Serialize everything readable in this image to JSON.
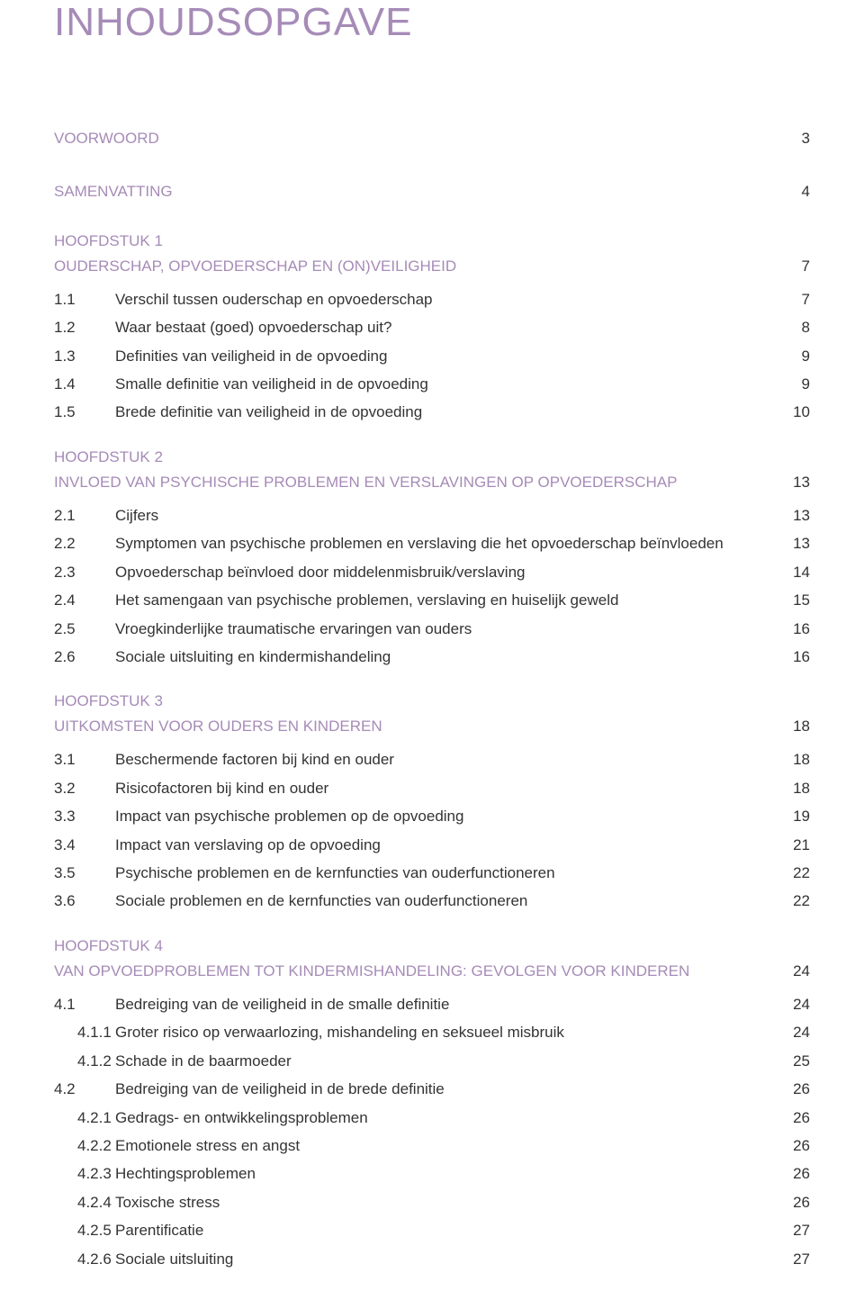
{
  "title": "INHOUDSOPGAVE",
  "accent_color": "#a68bb7",
  "text_color": "#333333",
  "bg_color": "#ffffff",
  "intro": [
    {
      "label": "VOORWOORD",
      "page": "3"
    },
    {
      "label": "SAMENVATTING",
      "page": "4"
    }
  ],
  "chapters": [
    {
      "label": "HOOFDSTUK 1",
      "title": "OUDERSCHAP, OPVOEDERSCHAP EN (ON)VEILIGHEID",
      "page": "7",
      "items": [
        {
          "num": "1.1",
          "text": "Verschil tussen ouderschap en opvoederschap",
          "page": "7"
        },
        {
          "num": "1.2",
          "text": "Waar bestaat (goed) opvoederschap uit?",
          "page": "8"
        },
        {
          "num": "1.3",
          "text": "Definities van veiligheid in de opvoeding",
          "page": "9"
        },
        {
          "num": "1.4",
          "text": "Smalle definitie van veiligheid in de opvoeding",
          "page": "9"
        },
        {
          "num": "1.5",
          "text": "Brede definitie van veiligheid in de opvoeding",
          "page": "10"
        }
      ]
    },
    {
      "label": "HOOFDSTUK 2",
      "title": "INVLOED VAN PSYCHISCHE PROBLEMEN EN VERSLAVINGEN OP OPVOEDERSCHAP",
      "page": "13",
      "items": [
        {
          "num": "2.1",
          "text": "Cijfers",
          "page": "13"
        },
        {
          "num": "2.2",
          "text": "Symptomen van psychische problemen en verslaving die het opvoederschap beïnvloeden",
          "page": "13"
        },
        {
          "num": "2.3",
          "text": "Opvoederschap beïnvloed door middelenmisbruik/verslaving",
          "page": "14"
        },
        {
          "num": "2.4",
          "text": "Het samengaan van psychische problemen, verslaving en huiselijk geweld",
          "page": "15"
        },
        {
          "num": "2.5",
          "text": "Vroegkinderlijke traumatische ervaringen van ouders",
          "page": "16"
        },
        {
          "num": "2.6",
          "text": "Sociale uitsluiting en kindermishandeling",
          "page": "16"
        }
      ]
    },
    {
      "label": "HOOFDSTUK 3",
      "title": "UITKOMSTEN VOOR OUDERS EN KINDEREN",
      "page": "18",
      "items": [
        {
          "num": "3.1",
          "text": "Beschermende factoren bij kind en ouder",
          "page": "18"
        },
        {
          "num": "3.2",
          "text": "Risicofactoren bij kind en ouder",
          "page": "18"
        },
        {
          "num": "3.3",
          "text": "Impact van psychische problemen op de opvoeding",
          "page": "19"
        },
        {
          "num": "3.4",
          "text": "Impact van verslaving op de opvoeding",
          "page": "21"
        },
        {
          "num": "3.5",
          "text": "Psychische problemen en de kernfuncties van ouderfunctioneren",
          "page": "22"
        },
        {
          "num": "3.6",
          "text": "Sociale problemen en de kernfuncties van ouderfunctioneren",
          "page": "22"
        }
      ]
    },
    {
      "label": "HOOFDSTUK 4",
      "title": "VAN OPVOEDPROBLEMEN TOT KINDERMISHANDELING: GEVOLGEN VOOR KINDEREN",
      "page": "24",
      "items": [
        {
          "num": "4.1",
          "text": "Bedreiging van de veiligheid in de smalle definitie",
          "page": "24"
        },
        {
          "num": "4.1.1",
          "text": "Groter risico op verwaarlozing, mishandeling en seksueel misbruik",
          "page": "24",
          "sub": true
        },
        {
          "num": "4.1.2",
          "text": "Schade in de baarmoeder",
          "page": "25",
          "sub": true
        },
        {
          "num": "4.2",
          "text": "Bedreiging van de veiligheid in de brede definitie",
          "page": "26"
        },
        {
          "num": "4.2.1",
          "text": "Gedrags- en ontwikkelingsproblemen",
          "page": "26",
          "sub": true
        },
        {
          "num": "4.2.2",
          "text": "Emotionele stress en angst",
          "page": "26",
          "sub": true
        },
        {
          "num": "4.2.3",
          "text": "Hechtingsproblemen",
          "page": "26",
          "sub": true
        },
        {
          "num": "4.2.4",
          "text": "Toxische stress",
          "page": "26",
          "sub": true
        },
        {
          "num": "4.2.5",
          "text": "Parentificatie",
          "page": "27",
          "sub": true
        },
        {
          "num": "4.2.6",
          "text": "Sociale uitsluiting",
          "page": "27",
          "sub": true
        }
      ]
    }
  ]
}
